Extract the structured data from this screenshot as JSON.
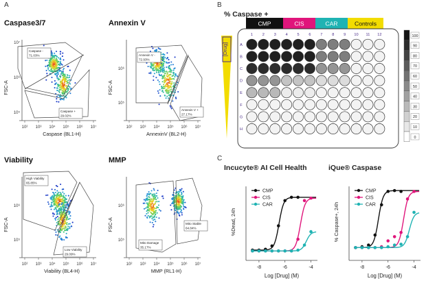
{
  "panel_letters": {
    "a": "A",
    "b": "B",
    "c": "C"
  },
  "flow_panels": [
    {
      "title": "Caspase3/7",
      "ylabel": "FSC-A",
      "xlabel": "Caspase (BL1-H)",
      "xticks": [
        "10²",
        "10³",
        "10⁴",
        "10⁵",
        "10⁶",
        "10⁷"
      ],
      "yticks": [
        "10⁷",
        "10⁶",
        "10⁵"
      ],
      "gates": [
        {
          "label": "Caspase -",
          "value": "71.03%"
        },
        {
          "label": "Caspase +",
          "value": "29.02%"
        }
      ]
    },
    {
      "title": "Annexin V",
      "ylabel": "FSC-A",
      "xlabel": "AnnexinV (BL2-H)",
      "xticks": [
        "10²",
        "10³",
        "10⁴",
        "10⁵",
        "10⁶",
        "10⁷"
      ],
      "yticks": [
        "10⁶",
        "10⁵"
      ],
      "gates": [
        {
          "label": "Annexin V -",
          "value": "72.93%"
        },
        {
          "label": "Annexin V +",
          "value": "27.17%"
        }
      ]
    },
    {
      "title": "Viability",
      "ylabel": "FSC-A",
      "xlabel": "Viability (BL4-H)",
      "xticks": [
        "10²",
        "10³",
        "10⁴",
        "10⁵",
        "10⁶",
        "10⁷"
      ],
      "yticks": [
        "10⁶",
        "10⁵"
      ],
      "gates": [
        {
          "label": "High Viability",
          "value": "65.85%"
        },
        {
          "label": "Low Viability",
          "value": "29.09%"
        }
      ]
    },
    {
      "title": "MMP",
      "ylabel": "FSC-A",
      "xlabel": "MMP (RL1-H)",
      "xticks": [
        "10²",
        "10³",
        "10⁴",
        "10⁵",
        "10⁶",
        "10⁷"
      ],
      "yticks": [
        "10⁶",
        "10⁵"
      ],
      "gates": [
        {
          "label": "Mito Damage",
          "value": "35.17%"
        },
        {
          "label": "Mito Stable",
          "value": "64.84%"
        }
      ]
    }
  ],
  "plate": {
    "title": "% Caspase +",
    "drug_label": "[Drug]",
    "groups": [
      {
        "label": "CMP",
        "color": "#111111"
      },
      {
        "label": "CIS",
        "color": "#e0157b"
      },
      {
        "label": "CAR",
        "color": "#1fb3b3"
      },
      {
        "label": "Controls",
        "color": "#f2dc00"
      }
    ],
    "cols": [
      "1",
      "2",
      "3",
      "4",
      "5",
      "6",
      "7",
      "8",
      "9",
      "10",
      "11",
      "12"
    ],
    "rows": [
      "A",
      "B",
      "C",
      "D",
      "E",
      "F",
      "G",
      "H"
    ],
    "scale": [
      "100",
      "90",
      "80",
      "70",
      "60",
      "50",
      "40",
      "30",
      "20",
      "10",
      "0"
    ],
    "wells": [
      [
        95,
        95,
        95,
        95,
        95,
        95,
        55,
        55,
        55,
        5,
        5,
        5
      ],
      [
        95,
        95,
        95,
        95,
        95,
        95,
        55,
        55,
        55,
        5,
        5,
        5
      ],
      [
        90,
        90,
        90,
        90,
        90,
        90,
        45,
        45,
        45,
        5,
        5,
        5
      ],
      [
        45,
        45,
        45,
        25,
        25,
        25,
        15,
        15,
        15,
        5,
        5,
        5
      ],
      [
        30,
        30,
        30,
        8,
        8,
        8,
        5,
        5,
        5,
        5,
        5,
        5
      ],
      [
        5,
        5,
        5,
        5,
        5,
        5,
        5,
        5,
        5,
        5,
        5,
        5
      ],
      [
        5,
        5,
        5,
        5,
        5,
        5,
        5,
        5,
        5,
        5,
        5,
        5
      ],
      [
        5,
        5,
        5,
        5,
        5,
        5,
        5,
        5,
        5,
        5,
        5,
        5
      ]
    ]
  },
  "chart_data": [
    {
      "type": "scatter",
      "title": "Incucyte® AI Cell Health",
      "xlabel": "Log [Drug] (M)",
      "ylabel": "%Dead, 24h",
      "xlim": [
        -9,
        -3.5
      ],
      "ylim": [
        0,
        85
      ],
      "xticks": [
        -8,
        -6,
        -4
      ],
      "series": [
        {
          "name": "CMP",
          "color": "#111111",
          "x": [
            -8.5,
            -8,
            -7.5,
            -7,
            -6.5,
            -6,
            -5.5,
            -5
          ],
          "y": [
            9,
            9,
            10,
            14,
            38,
            68,
            72,
            72
          ]
        },
        {
          "name": "CIS",
          "color": "#e0157b",
          "x": [
            -8.5,
            -8,
            -7.5,
            -7,
            -6.5,
            -6,
            -5.5,
            -5,
            -4.5,
            -4
          ],
          "y": [
            8,
            8,
            8,
            8,
            8,
            8,
            8,
            22,
            68,
            71
          ]
        },
        {
          "name": "CAR",
          "color": "#1fb3b3",
          "x": [
            -8.5,
            -8,
            -7.5,
            -7,
            -6.5,
            -6,
            -5.5,
            -5,
            -4.5,
            -4
          ],
          "y": [
            8,
            8,
            8,
            8,
            8,
            8,
            8,
            9,
            15,
            31
          ]
        }
      ]
    },
    {
      "type": "scatter",
      "title": "iQue® Caspase",
      "xlabel": "Log [Drug] (M)",
      "ylabel": "% Caspase+, 24h",
      "xlim": [
        -9,
        -3.5
      ],
      "ylim": [
        0,
        85
      ],
      "xticks": [
        -8,
        -6,
        -4
      ],
      "series": [
        {
          "name": "CMP",
          "color": "#111111",
          "x": [
            -8.5,
            -8,
            -7.5,
            -7,
            -6.5,
            -6,
            -5.5,
            -5
          ],
          "y": [
            12,
            13,
            15,
            27,
            63,
            79,
            80,
            79
          ]
        },
        {
          "name": "CIS",
          "color": "#e0157b",
          "x": [
            -8.5,
            -8,
            -7.5,
            -7,
            -6.5,
            -6,
            -5.5,
            -5,
            -4.5,
            -4
          ],
          "y": [
            12,
            12,
            12,
            12,
            13,
            20,
            25,
            30,
            70,
            79
          ]
        },
        {
          "name": "CAR",
          "color": "#1fb3b3",
          "x": [
            -8.5,
            -8,
            -7.5,
            -7,
            -6.5,
            -6,
            -5.5,
            -5,
            -4.5,
            -4
          ],
          "y": [
            12,
            12,
            12,
            12,
            12,
            13,
            15,
            16,
            25,
            54
          ]
        }
      ]
    }
  ]
}
